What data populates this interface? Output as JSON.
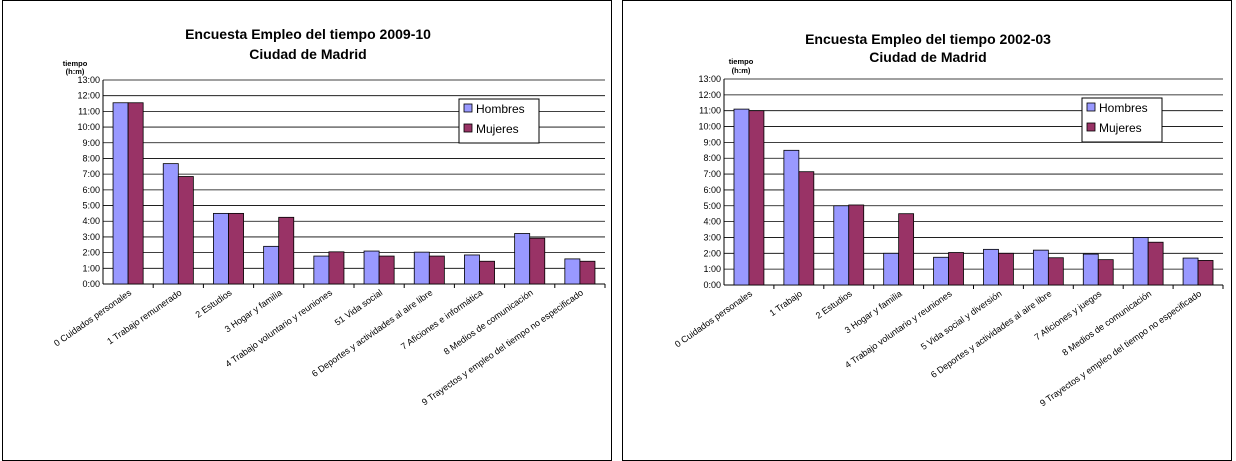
{
  "chart_data": [
    {
      "type": "bar",
      "title": "Encuesta Empleo del tiempo 2009-10",
      "subtitle": "Ciudad de Madrid",
      "ylabel": "tiempo",
      "yunit": "(h:m)",
      "ylim": [
        0,
        13
      ],
      "yticks": [
        "0:00",
        "1:00",
        "2:00",
        "3:00",
        "4:00",
        "5:00",
        "6:00",
        "7:00",
        "8:00",
        "9:00",
        "10:00",
        "11:00",
        "12:00",
        "13:00"
      ],
      "grid": true,
      "legend": "top-right",
      "categories": [
        "0 Cuidados personales",
        "1 Trabajo remunerado",
        "2 Estudios",
        "3 Hogar y familia",
        "4 Trabajo voluntario y reuniones",
        "51 Vida social",
        "6 Deportes y actividades al aire libre",
        "7 Aficiones e informática",
        "8 Medios de comunicación",
        "9 Trayectos y empleo del tiempo no especificado"
      ],
      "series": [
        {
          "name": "Hombres",
          "color": "#9999ff",
          "values": [
            11.55,
            7.67,
            4.5,
            2.4,
            1.78,
            2.1,
            2.03,
            1.85,
            3.22,
            1.6
          ]
        },
        {
          "name": "Mujeres",
          "color": "#993366",
          "values": [
            11.55,
            6.85,
            4.5,
            4.25,
            2.05,
            1.78,
            1.78,
            1.45,
            2.92,
            1.45
          ]
        }
      ]
    },
    {
      "type": "bar",
      "title": "Encuesta Empleo del tiempo 2002-03",
      "subtitle": "Ciudad de Madrid",
      "ylabel": "tiempo",
      "yunit": "(h:m)",
      "ylim": [
        0,
        13
      ],
      "yticks": [
        "0:00",
        "1:00",
        "2:00",
        "3:00",
        "4:00",
        "5:00",
        "6:00",
        "7:00",
        "8:00",
        "9:00",
        "10:00",
        "11:00",
        "12:00",
        "13:00"
      ],
      "grid": true,
      "legend": "top-right",
      "categories": [
        "0 Cuidados personales",
        "1 Trabajo",
        "2 Estudios",
        "3 Hogar y familia",
        "4 Trabajo voluntario y reuniones",
        "5 Vida social y diversión",
        "6 Deportes y actividades al aire libre",
        "7 Aficiones y juegos",
        "8 Medios de comunicación",
        "9 Trayectos y empleo del tiempo no especificado"
      ],
      "series": [
        {
          "name": "Hombres",
          "color": "#9999ff",
          "values": [
            11.1,
            8.5,
            5.0,
            2.0,
            1.75,
            2.25,
            2.2,
            1.95,
            3.0,
            1.7
          ]
        },
        {
          "name": "Mujeres",
          "color": "#993366",
          "values": [
            11.0,
            7.15,
            5.05,
            4.5,
            2.05,
            2.0,
            1.72,
            1.6,
            2.7,
            1.55
          ]
        }
      ]
    }
  ]
}
